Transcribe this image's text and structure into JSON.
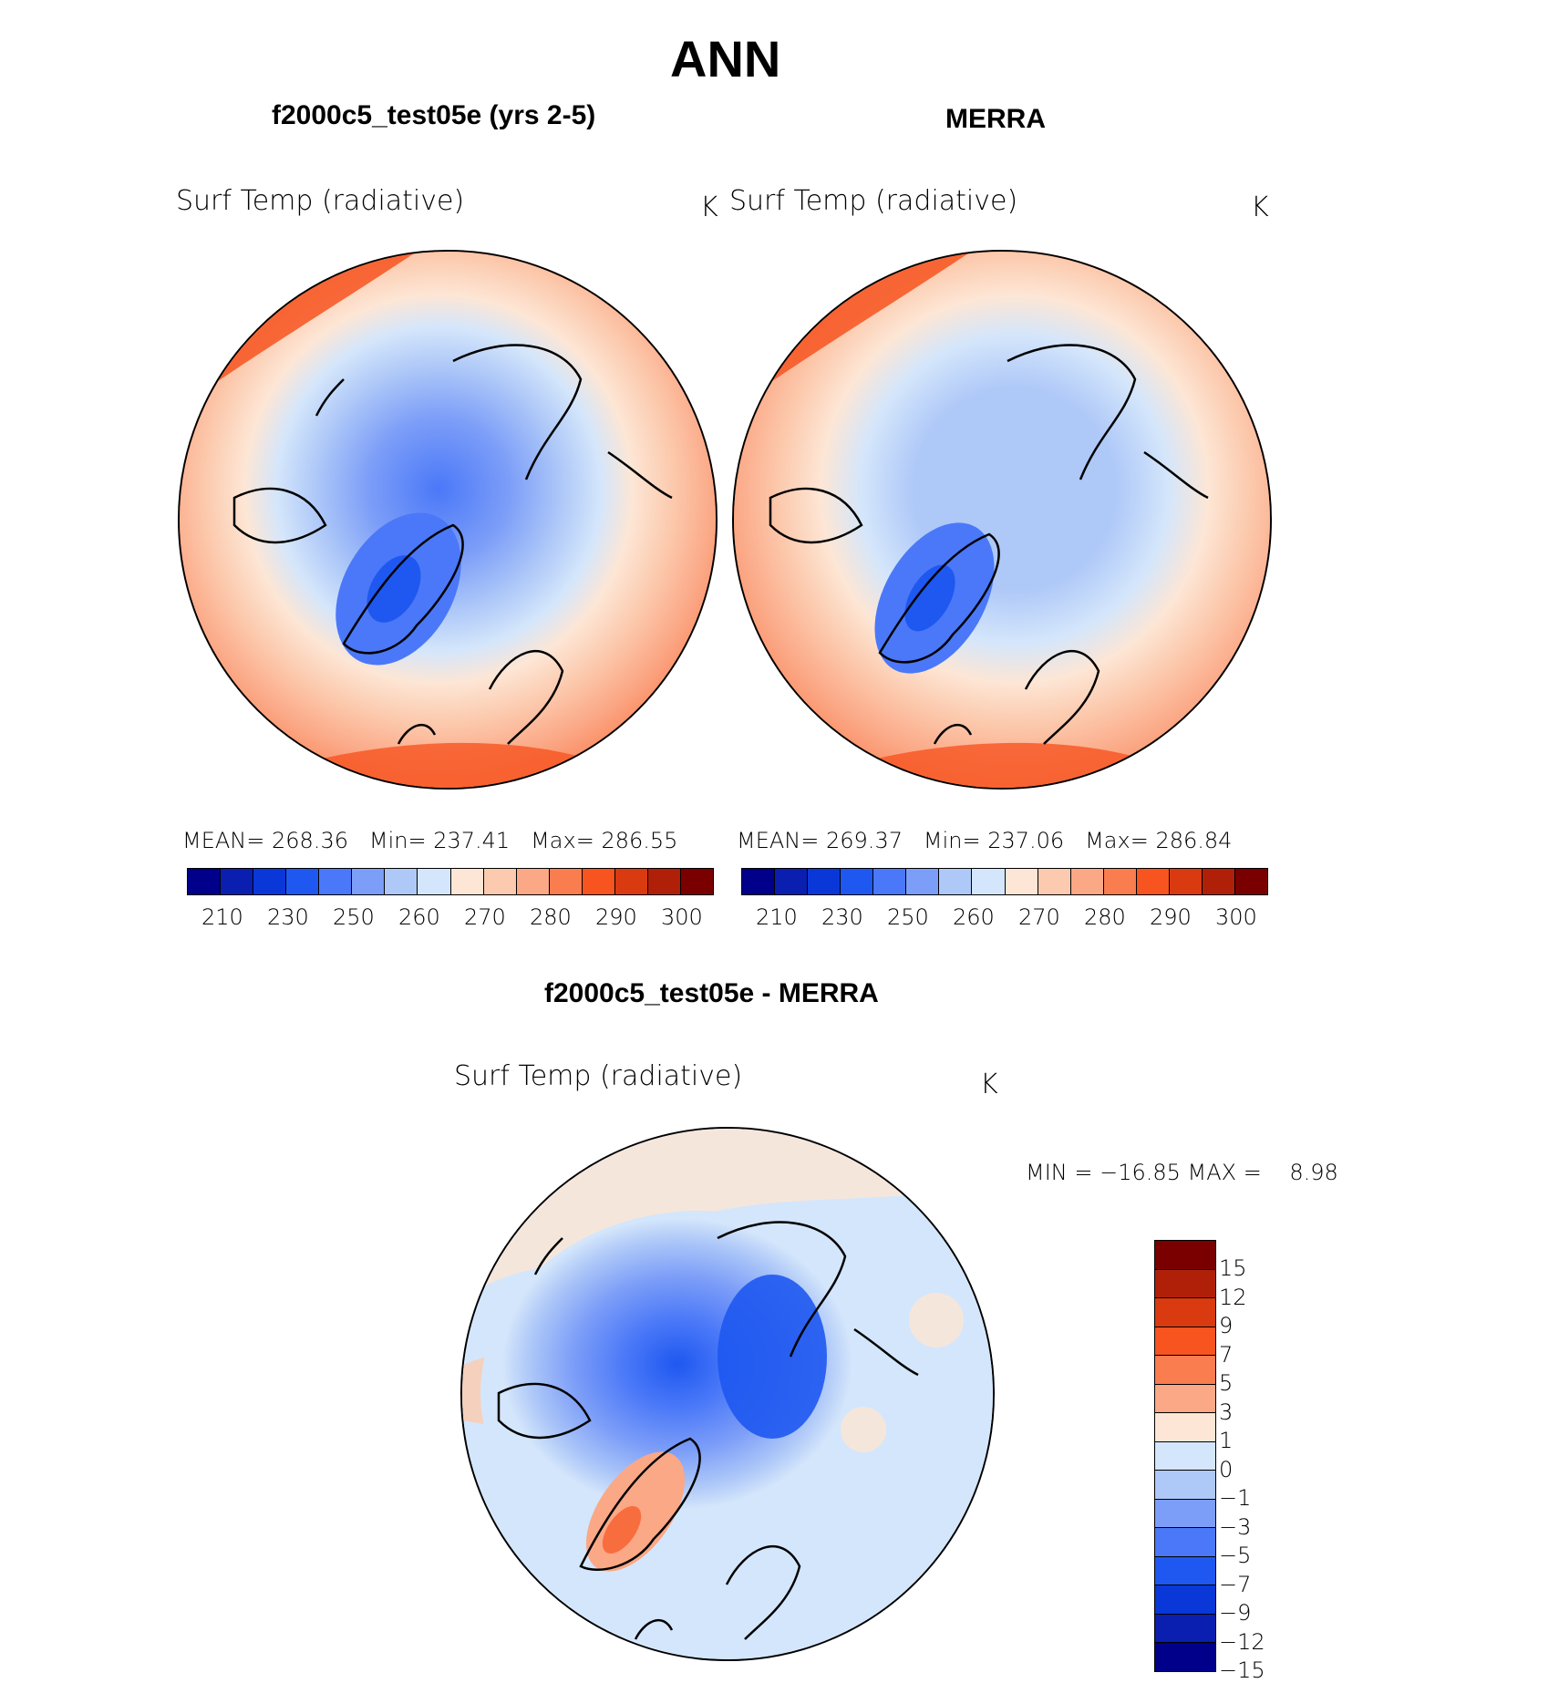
{
  "title": "ANN",
  "panels": [
    {
      "heading": "f2000c5_test05e (yrs 2-5)",
      "variable": "Surf Temp (radiative)",
      "units": "K",
      "stats": {
        "mean_label": "MEAN=",
        "mean": "268.36",
        "min_label": "Min=",
        "min": "237.41",
        "max_label": "Max=",
        "max": "286.55"
      }
    },
    {
      "heading": "MERRA",
      "variable": "Surf Temp (radiative)",
      "units": "K",
      "stats": {
        "mean_label": "MEAN=",
        "mean": "269.37",
        "min_label": "Min=",
        "min": "237.06",
        "max_label": "Max=",
        "max": "286.84"
      }
    }
  ],
  "diff_panel": {
    "heading": "f2000c5_test05e - MERRA",
    "variable": "Surf Temp (radiative)",
    "units": "K",
    "minmax": "MIN = −16.85 MAX =    8.98"
  },
  "colorbar_abs": {
    "ticks": [
      "210",
      "230",
      "250",
      "260",
      "270",
      "280",
      "290",
      "300"
    ],
    "colors": [
      "#00008a",
      "#0a1fb0",
      "#0a38d8",
      "#1e58f0",
      "#4a78f8",
      "#7d9ef8",
      "#aec8f8",
      "#d4e6fb",
      "#fde6d5",
      "#fccaae",
      "#fba886",
      "#fa7d4f",
      "#f75420",
      "#d93a10",
      "#b02008",
      "#7a0000"
    ]
  },
  "colorbar_diff": {
    "ticks": [
      "15",
      "12",
      "9",
      "7",
      "5",
      "3",
      "1",
      "0",
      "−1",
      "−3",
      "−5",
      "−7",
      "−9",
      "−12",
      "−15"
    ],
    "colors": [
      "#7a0000",
      "#b02008",
      "#d93a10",
      "#f75420",
      "#fa7d4f",
      "#fba886",
      "#fde6d5",
      "#d4e6fb",
      "#aec8f8",
      "#7d9ef8",
      "#4a78f8",
      "#1e58f0",
      "#0a38d8",
      "#0a1fb0",
      "#00008a"
    ]
  }
}
